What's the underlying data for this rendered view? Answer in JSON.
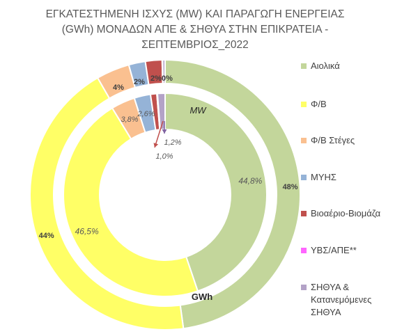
{
  "chart_data": {
    "type": "pie",
    "title_lines": [
      "ΕΓΚΑΤΕΣΤΗΜΕΝΗ ΙΣΧΥΣ (MW) ΚΑΙ ΠΑΡΑΓΩΓΗ ΕΝΕΡΓΕΙΑΣ",
      "(GWh) ΜΟΝΑΔΩΝ ΑΠΕ & ΣΗΘΥΑ ΣΤΗΝ ΕΠΙΚΡΑΤΕΙΑ -",
      "ΣΕΠΤΕΜΒΡΙΟΣ_2022"
    ],
    "categories": [
      "Αιολικά",
      "Φ/Β",
      "Φ/Β Στέγες",
      "ΜΥΗΣ",
      "Βιοαέριο-Βιομάζα",
      "ΥΒΣ/ΑΠΕ**",
      "ΣΗΘΥΑ &\nΚατανεμόμενες\nΣΗΘΥΑ"
    ],
    "colors": [
      "#c3d69b",
      "#ffff66",
      "#fac090",
      "#95b3d7",
      "#c0504d",
      "#ff66ff",
      "#b3a2c7"
    ],
    "series": [
      {
        "name": "MW",
        "ring": "inner",
        "values": [
          44.8,
          46.5,
          3.8,
          2.6,
          1.0,
          0.1,
          1.2
        ],
        "labels": [
          "44,8%",
          "46,5%",
          "3,8%",
          "2,6%",
          "1,0%",
          "",
          "1,2%"
        ]
      },
      {
        "name": "GWh",
        "ring": "outer",
        "values": [
          48,
          44,
          4,
          2,
          2,
          0.05,
          0.3
        ],
        "labels": [
          "48%",
          "44%",
          "4%",
          "2%",
          "2%",
          "",
          "0%"
        ]
      }
    ],
    "legend_position": "right"
  }
}
